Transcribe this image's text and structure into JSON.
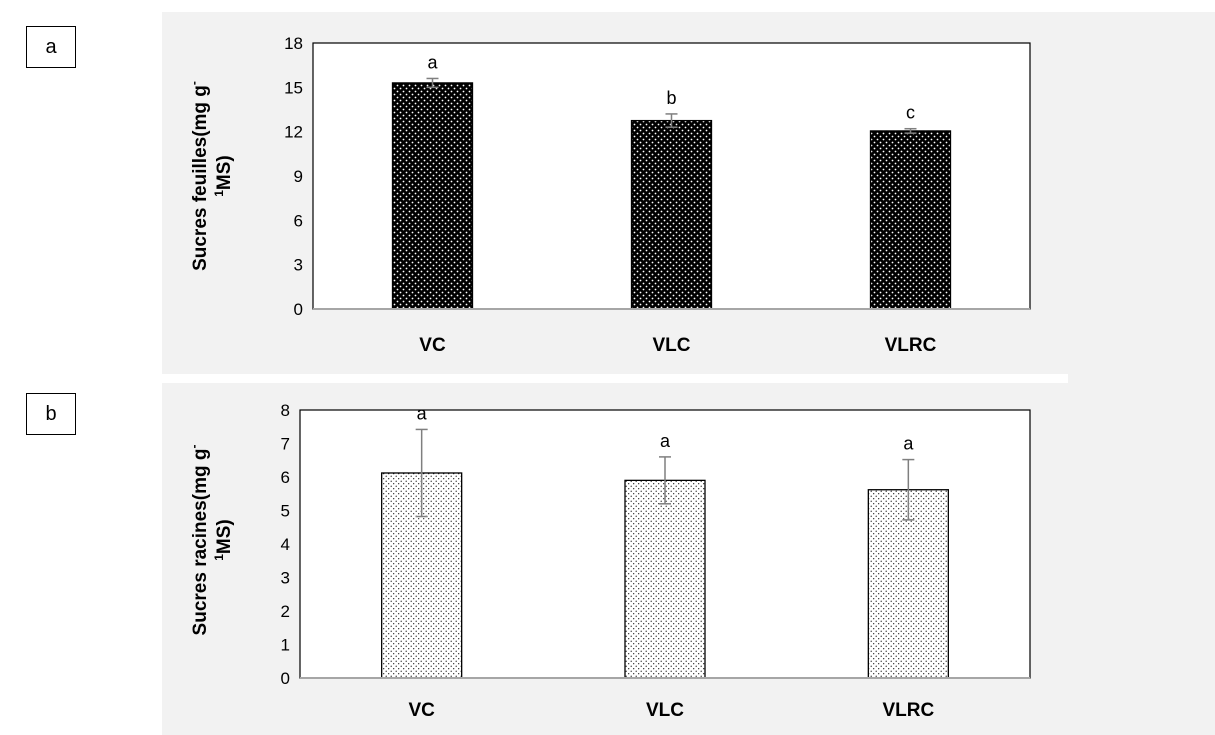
{
  "panels": [
    {
      "label": "a"
    },
    {
      "label": "b"
    }
  ],
  "chart_data": [
    {
      "type": "bar",
      "panel": "a",
      "title": "",
      "xlabel": "",
      "ylabel_line1": "Sucres feuilles(mg g",
      "ylabel_sup1": "-",
      "ylabel_sup2": "1",
      "ylabel_line2": "MS)",
      "categories": [
        "VC",
        "VLC",
        "VLRC"
      ],
      "values": [
        15.3,
        12.75,
        12.05
      ],
      "errors": [
        0.3,
        0.45,
        0.15
      ],
      "significance": [
        "a",
        "b",
        "c"
      ],
      "ylim": [
        0,
        18
      ],
      "yticks": [
        0,
        3,
        6,
        9,
        12,
        15,
        18
      ],
      "grid": false,
      "legend": "none",
      "bar_pattern": "dark-dotted",
      "colors": {
        "bar": "#000000",
        "dots": "#ffffff",
        "error": "#7f7f7f"
      }
    },
    {
      "type": "bar",
      "panel": "b",
      "title": "",
      "xlabel": "",
      "ylabel_line1": "Sucres racines(mg g",
      "ylabel_sup1": "-",
      "ylabel_sup2": "1",
      "ylabel_line2": "MS)",
      "categories": [
        "VC",
        "VLC",
        "VLRC"
      ],
      "values": [
        6.12,
        5.9,
        5.62
      ],
      "errors": [
        1.3,
        0.7,
        0.9
      ],
      "significance": [
        "a",
        "a",
        "a"
      ],
      "ylim": [
        0,
        8
      ],
      "yticks": [
        0,
        1,
        2,
        3,
        4,
        5,
        6,
        7,
        8
      ],
      "grid": false,
      "legend": "none",
      "bar_pattern": "light-dotted",
      "colors": {
        "bar": "#ffffff",
        "dots": "#000000",
        "error": "#7f7f7f"
      }
    }
  ]
}
